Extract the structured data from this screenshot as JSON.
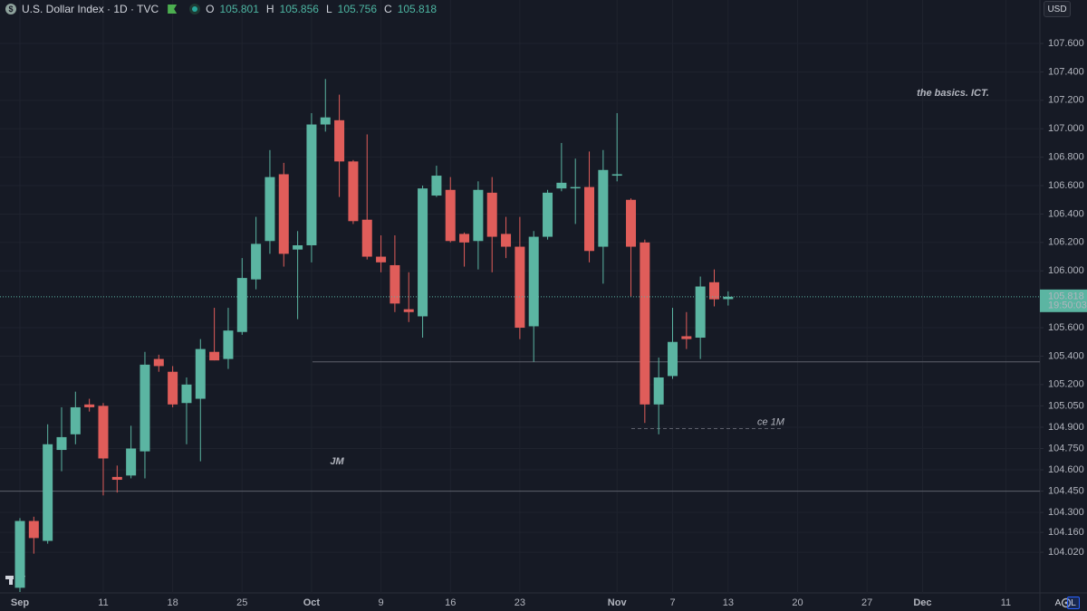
{
  "chart_data": {
    "type": "candlestick",
    "title": "U.S. Dollar Index · 1D · TVC",
    "ohlc_labels": [
      "O",
      "H",
      "L",
      "C"
    ],
    "currency": "USD",
    "countdown": "19:50:03",
    "scale_buttons": [
      "A",
      "L"
    ],
    "annotations": [
      {
        "text": "the basics. ICT."
      },
      {
        "text": "JM"
      }
    ],
    "levels": [
      {
        "value": 105.36
      },
      {
        "value": 104.45
      },
      {
        "value": 104.89,
        "label": "ce 1M"
      }
    ],
    "up_color": "#5bb5a2",
    "down_color": "#e05d5a",
    "grid": true,
    "categories": [
      "Sep",
      null,
      null,
      null,
      null,
      null,
      "11",
      null,
      null,
      null,
      null,
      "18",
      null,
      null,
      null,
      null,
      "25",
      null,
      null,
      null,
      null,
      "Oct",
      null,
      null,
      null,
      null,
      "9",
      null,
      null,
      null,
      null,
      "16",
      null,
      null,
      null,
      null,
      "23",
      null,
      null,
      null,
      null,
      null,
      null,
      "Nov",
      null,
      null,
      null,
      "7",
      null,
      null,
      null,
      "13",
      null,
      null,
      null,
      null,
      "20",
      null,
      null,
      null,
      null,
      "27",
      null,
      null,
      null,
      "Dec",
      null,
      null,
      null,
      null,
      null,
      "11",
      null,
      null
    ],
    "open": [
      103.77,
      104.24,
      104.1,
      104.74,
      104.85,
      105.06,
      105.05,
      104.55,
      104.56,
      104.73,
      105.38,
      105.29,
      105.07,
      105.1,
      105.43,
      105.38,
      105.57,
      105.94,
      106.21,
      106.68,
      106.15,
      106.18,
      107.03,
      107.06,
      106.77,
      106.36,
      106.1,
      106.04,
      105.73,
      105.68,
      106.53,
      106.57,
      106.26,
      106.21,
      106.55,
      106.26,
      106.17,
      105.61,
      106.24,
      106.58,
      106.59,
      106.59,
      106.17,
      106.67,
      106.5,
      106.2,
      105.06,
      105.26,
      105.54,
      105.53,
      105.92,
      105.801,
      null,
      null,
      null,
      null,
      null,
      null,
      null,
      null,
      null,
      null,
      null,
      null,
      null,
      null,
      null,
      null,
      null,
      null,
      null,
      null,
      null,
      null
    ],
    "high": [
      104.26,
      104.27,
      104.92,
      105.04,
      105.15,
      105.1,
      105.07,
      104.63,
      104.91,
      105.43,
      105.41,
      105.33,
      105.25,
      105.52,
      105.74,
      105.74,
      106.09,
      106.38,
      106.85,
      106.76,
      106.28,
      107.11,
      107.35,
      107.24,
      106.78,
      106.96,
      106.25,
      106.25,
      105.99,
      106.6,
      106.74,
      106.66,
      106.27,
      106.63,
      106.66,
      106.38,
      106.38,
      106.28,
      106.57,
      106.9,
      106.79,
      106.84,
      106.85,
      107.11,
      106.51,
      106.22,
      105.39,
      105.74,
      105.71,
      105.96,
      106.01,
      105.856,
      null,
      null,
      null,
      null,
      null,
      null,
      null,
      null,
      null,
      null,
      null,
      null,
      null,
      null,
      null,
      null,
      null,
      null,
      null,
      null,
      null,
      null
    ],
    "low": [
      103.74,
      104.01,
      104.08,
      104.59,
      104.78,
      105.01,
      104.42,
      104.44,
      104.54,
      104.54,
      105.29,
      105.04,
      104.78,
      104.66,
      105.37,
      105.31,
      105.55,
      105.87,
      106.12,
      106.03,
      105.66,
      106.06,
      106.98,
      106.52,
      106.33,
      106.08,
      105.99,
      105.71,
      105.64,
      105.53,
      106.52,
      106.2,
      106.03,
      106.01,
      105.99,
      106.09,
      105.52,
      105.36,
      106.22,
      106.56,
      106.33,
      106.06,
      105.91,
      106.63,
      105.82,
      104.93,
      104.85,
      105.24,
      105.45,
      105.38,
      105.75,
      105.756,
      null,
      null,
      null,
      null,
      null,
      null,
      null,
      null,
      null,
      null,
      null,
      null,
      null,
      null,
      null,
      null,
      null,
      null,
      null,
      null,
      null,
      null
    ],
    "close": [
      104.24,
      104.12,
      104.78,
      104.83,
      105.04,
      105.04,
      104.68,
      104.53,
      104.75,
      105.34,
      105.33,
      105.06,
      105.2,
      105.45,
      105.37,
      105.58,
      105.95,
      106.19,
      106.66,
      106.12,
      106.18,
      107.03,
      107.08,
      106.77,
      106.35,
      106.1,
      106.06,
      105.77,
      105.71,
      106.58,
      106.67,
      106.21,
      106.2,
      106.57,
      106.24,
      106.17,
      105.6,
      106.24,
      106.55,
      106.62,
      106.59,
      106.14,
      106.71,
      106.68,
      106.17,
      105.06,
      105.25,
      105.5,
      105.52,
      105.89,
      105.8,
      105.818,
      null,
      null,
      null,
      null,
      null,
      null,
      null,
      null,
      null,
      null,
      null,
      null,
      null,
      null,
      null,
      null,
      null,
      null,
      null,
      null,
      null,
      null
    ],
    "ylim": [
      103.734,
      107.906
    ],
    "yticks": [
      {
        "value": 107.6,
        "label": "107.600"
      },
      {
        "value": 107.4,
        "label": "107.400"
      },
      {
        "value": 107.2,
        "label": "107.200"
      },
      {
        "value": 107.0,
        "label": "107.000"
      },
      {
        "value": 106.8,
        "label": "106.800"
      },
      {
        "value": 106.6,
        "label": "106.600"
      },
      {
        "value": 106.4,
        "label": "106.400"
      },
      {
        "value": 106.2,
        "label": "106.200"
      },
      {
        "value": 106.0,
        "label": "106.000"
      },
      {
        "value": 105.6,
        "label": "105.600"
      },
      {
        "value": 105.4,
        "label": "105.400"
      },
      {
        "value": 105.2,
        "label": "105.200"
      },
      {
        "value": 105.05,
        "label": "105.050"
      },
      {
        "value": 104.9,
        "label": "104.900"
      },
      {
        "value": 104.75,
        "label": "104.750"
      },
      {
        "value": 104.6,
        "label": "104.600"
      },
      {
        "value": 104.45,
        "label": "104.450"
      },
      {
        "value": 104.3,
        "label": "104.300"
      },
      {
        "value": 104.16,
        "label": "104.160"
      },
      {
        "value": 104.02,
        "label": "104.020"
      }
    ]
  }
}
